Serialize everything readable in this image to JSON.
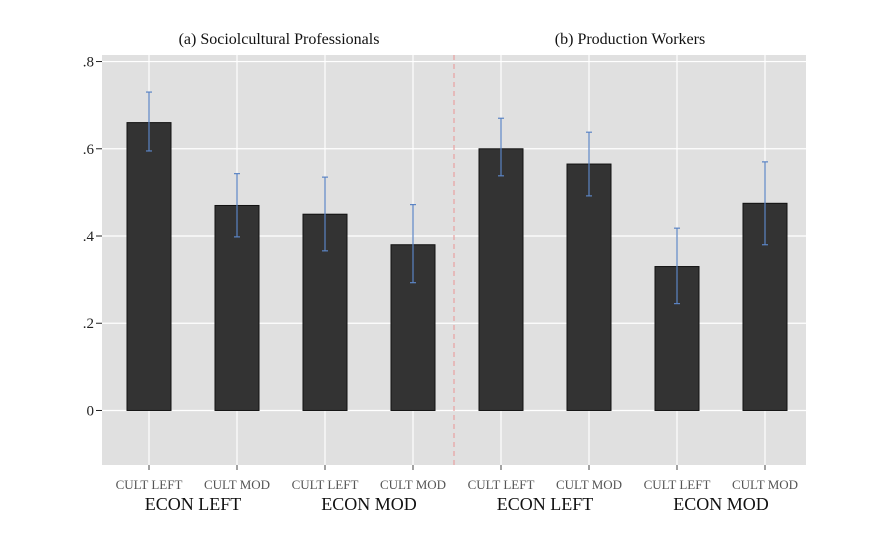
{
  "chart_data": {
    "type": "bar",
    "panels": [
      {
        "title": "(a) Sociolcultural Professionals",
        "categories": [
          "CULT LEFT",
          "CULT MOD",
          "CULT LEFT",
          "CULT MOD"
        ],
        "groups": [
          "ECON LEFT",
          "ECON MOD"
        ],
        "values": [
          0.66,
          0.47,
          0.45,
          0.38
        ],
        "ci_low": [
          0.595,
          0.398,
          0.366,
          0.293
        ],
        "ci_high": [
          0.73,
          0.543,
          0.535,
          0.472
        ]
      },
      {
        "title": "(b) Production Workers",
        "categories": [
          "CULT LEFT",
          "CULT MOD",
          "CULT LEFT",
          "CULT MOD"
        ],
        "groups": [
          "ECON LEFT",
          "ECON MOD"
        ],
        "values": [
          0.6,
          0.565,
          0.33,
          0.475
        ],
        "ci_low": [
          0.538,
          0.492,
          0.245,
          0.38
        ],
        "ci_high": [
          0.67,
          0.638,
          0.418,
          0.57
        ]
      }
    ],
    "y_ticks": [
      0,
      0.2,
      0.4,
      0.6,
      0.8
    ],
    "y_tick_labels": [
      "0",
      ".2",
      ".4",
      ".6",
      ".8"
    ],
    "ylim": [
      -0.125,
      0.815
    ],
    "grid": true,
    "bar_color": "#333333",
    "errorbar_color": "#5b84c4",
    "background_color": "#e0e0e0",
    "divider_color": "#e8a0a0"
  }
}
